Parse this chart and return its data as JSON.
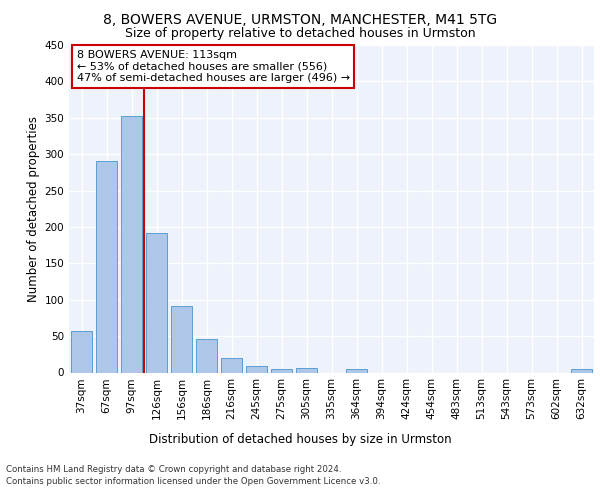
{
  "title": "8, BOWERS AVENUE, URMSTON, MANCHESTER, M41 5TG",
  "subtitle": "Size of property relative to detached houses in Urmston",
  "xlabel": "Distribution of detached houses by size in Urmston",
  "ylabel": "Number of detached properties",
  "categories": [
    "37sqm",
    "67sqm",
    "97sqm",
    "126sqm",
    "156sqm",
    "186sqm",
    "216sqm",
    "245sqm",
    "275sqm",
    "305sqm",
    "335sqm",
    "364sqm",
    "394sqm",
    "424sqm",
    "454sqm",
    "483sqm",
    "513sqm",
    "543sqm",
    "573sqm",
    "602sqm",
    "632sqm"
  ],
  "values": [
    57,
    290,
    353,
    192,
    92,
    46,
    20,
    9,
    5,
    6,
    0,
    5,
    0,
    0,
    0,
    0,
    0,
    0,
    0,
    0,
    5
  ],
  "bar_color": "#aec6e8",
  "bar_edge_color": "#5a9fd4",
  "vline_x": 2.5,
  "vline_color": "#cc0000",
  "annotation_text": "8 BOWERS AVENUE: 113sqm\n← 53% of detached houses are smaller (556)\n47% of semi-detached houses are larger (496) →",
  "annotation_box_color": "#ffffff",
  "annotation_box_edge": "#cc0000",
  "ylim": [
    0,
    450
  ],
  "yticks": [
    0,
    50,
    100,
    150,
    200,
    250,
    300,
    350,
    400,
    450
  ],
  "background_color": "#eef3fb",
  "grid_color": "#ffffff",
  "footer_line1": "Contains HM Land Registry data © Crown copyright and database right 2024.",
  "footer_line2": "Contains public sector information licensed under the Open Government Licence v3.0.",
  "title_fontsize": 10,
  "subtitle_fontsize": 9,
  "axis_label_fontsize": 8.5,
  "tick_fontsize": 7.5,
  "annotation_fontsize": 8
}
